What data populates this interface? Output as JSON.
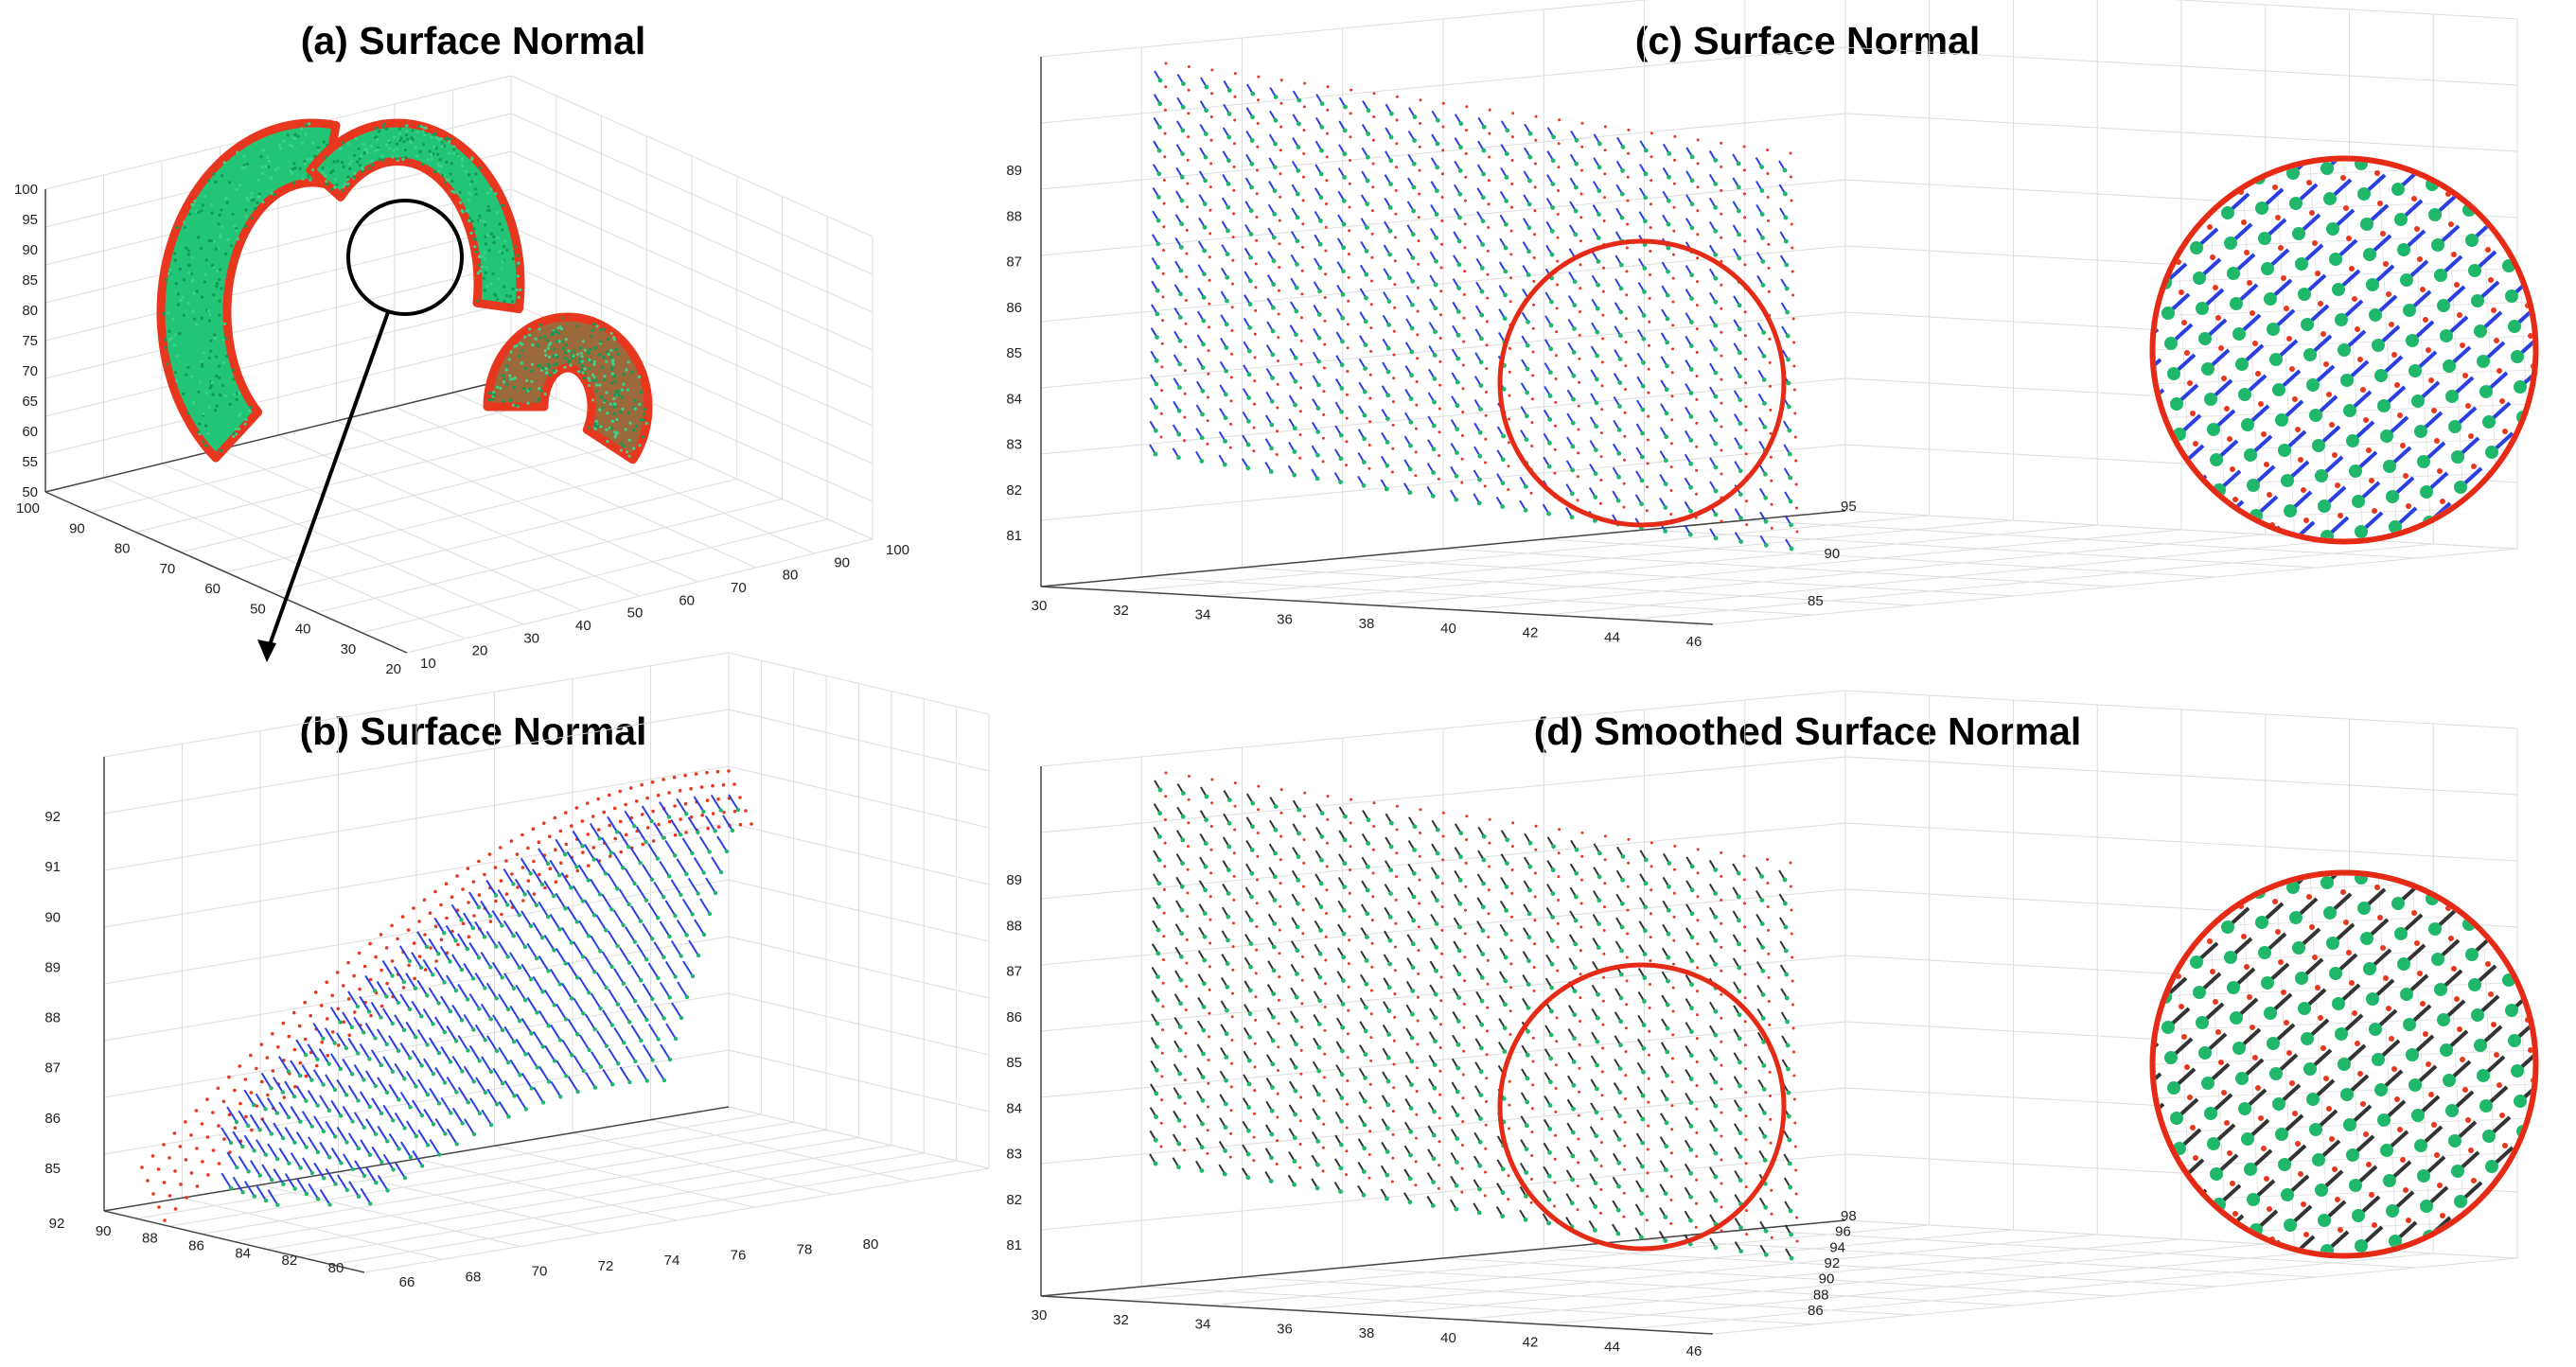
{
  "panels": {
    "a": {
      "title": "(a) Surface Normal",
      "z_ticks": [
        "100",
        "95",
        "90",
        "85",
        "80",
        "75",
        "70",
        "65",
        "60",
        "55",
        "50"
      ],
      "y_ticks": [
        "100",
        "90",
        "80",
        "70",
        "60",
        "50",
        "40",
        "30",
        "20"
      ],
      "x_ticks": [
        "10",
        "20",
        "30",
        "40",
        "50",
        "60",
        "70",
        "80",
        "90",
        "100"
      ]
    },
    "b": {
      "title": "(b) Surface Normal",
      "z_ticks": [
        "92",
        "91",
        "90",
        "89",
        "88",
        "87",
        "86",
        "85"
      ],
      "y_ticks": [
        "92",
        "90",
        "88",
        "86",
        "84",
        "82",
        "80"
      ],
      "x_ticks": [
        "66",
        "68",
        "70",
        "72",
        "74",
        "76",
        "78",
        "80"
      ]
    },
    "c": {
      "title": "(c) Surface Normal",
      "z_ticks": [
        "89",
        "88",
        "87",
        "86",
        "85",
        "84",
        "83",
        "82",
        "81"
      ],
      "x_ticks": [
        "30",
        "32",
        "34",
        "36",
        "38",
        "40",
        "42",
        "44",
        "46"
      ],
      "y_ticks": [
        "85",
        "90",
        "95"
      ]
    },
    "d": {
      "title": "(d) Smoothed Surface Normal",
      "z_ticks": [
        "89",
        "88",
        "87",
        "86",
        "85",
        "84",
        "83",
        "82",
        "81"
      ],
      "x_ticks": [
        "30",
        "32",
        "34",
        "36",
        "38",
        "40",
        "42",
        "44",
        "46"
      ],
      "y_ticks": [
        "86",
        "88",
        "90",
        "92",
        "94",
        "96",
        "98"
      ]
    }
  },
  "colors": {
    "points": "#e8371f",
    "normals_tip": "#1fb86a",
    "normals_raw": "#2b3fe0",
    "normals_smoothed": "#333333",
    "highlight_circle": "#e52a15",
    "callout": "#000000"
  }
}
